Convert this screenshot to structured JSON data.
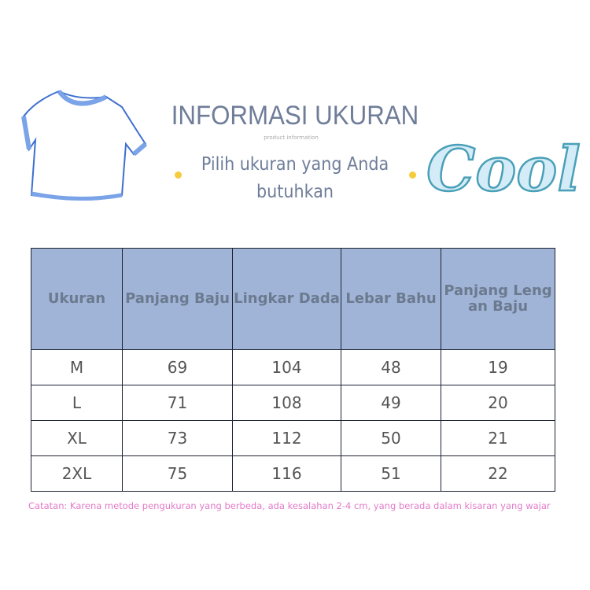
{
  "header": {
    "title": "INFORMASI UKURAN",
    "subtitle": "product information",
    "tagline_line1": "Pilih ukuran yang Anda",
    "tagline_line2": "butuhkan",
    "logo_text": "Cool",
    "accent_color": "#f4cc3c"
  },
  "table": {
    "header_bg": "#a0b4d8",
    "columns": [
      "Ukuran",
      "Panjang Baju",
      "Lingkar Dada",
      "Lebar Bahu",
      "Panjang Leng an Baju"
    ],
    "rows": [
      [
        "M",
        "69",
        "104",
        "48",
        "19"
      ],
      [
        "L",
        "71",
        "108",
        "49",
        "20"
      ],
      [
        "XL",
        "73",
        "112",
        "50",
        "21"
      ],
      [
        "2XL",
        "75",
        "116",
        "51",
        "22"
      ]
    ]
  },
  "note": "Catatan: Karena metode pengukuran yang berbeda, ada kesalahan 2-4 cm, yang berada dalam kisaran yang wajar"
}
